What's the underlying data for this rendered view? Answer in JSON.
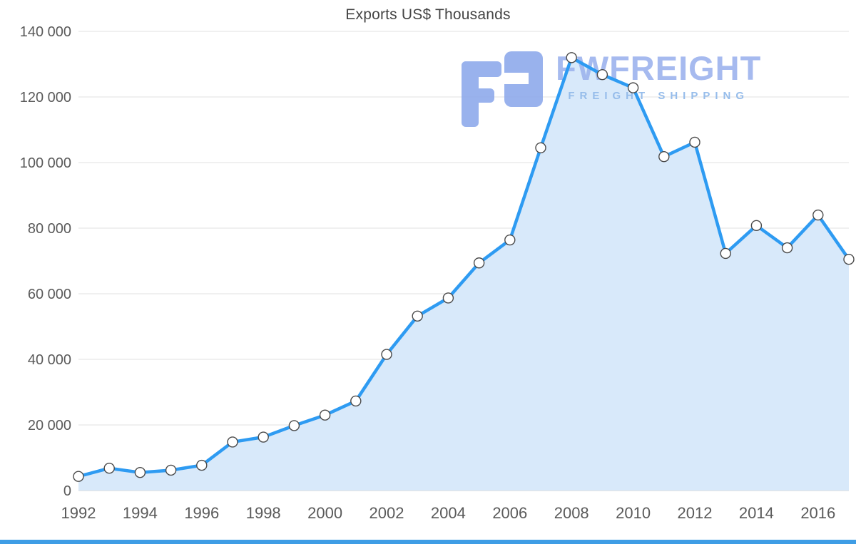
{
  "chart": {
    "title": "Exports US$ Thousands"
  },
  "watermark": {
    "brand": "FWFREIGHT",
    "tagline": "FREIGHT SHIPPING"
  },
  "chart_data": {
    "type": "area",
    "title": "Exports US$ Thousands",
    "x": [
      1992,
      1993,
      1994,
      1995,
      1996,
      1997,
      1998,
      1999,
      2000,
      2001,
      2002,
      2003,
      2004,
      2005,
      2006,
      2007,
      2008,
      2009,
      2010,
      2011,
      2012,
      2013,
      2014,
      2015,
      2016,
      2017
    ],
    "values": [
      4300,
      6800,
      5500,
      6200,
      7700,
      14800,
      16300,
      19800,
      23000,
      27300,
      41500,
      53200,
      58700,
      69400,
      76400,
      104500,
      132000,
      126800,
      122800,
      101800,
      106200,
      72300,
      80800,
      74000,
      84000,
      70500
    ],
    "series_name": "Exports US$ Thousands",
    "ylim": [
      0,
      140000
    ],
    "ytick_step": 20000,
    "yticks": [
      0,
      20000,
      40000,
      60000,
      80000,
      100000,
      120000,
      140000
    ],
    "xticks": [
      1992,
      1994,
      1996,
      1998,
      2000,
      2002,
      2004,
      2006,
      2008,
      2010,
      2012,
      2014,
      2016
    ],
    "grid": "horizontal",
    "legend": "none",
    "colors": {
      "line": "#2E9BF2",
      "fill": "#D8E9FA",
      "marker_fill": "#FFFFFF",
      "marker_stroke": "#4A4A4A",
      "grid": "#E2E2E2",
      "baseline": "#C6C6C6",
      "axis_text": "#5A5A5A",
      "title_text": "#454545",
      "watermark_text": "#9FB5EE",
      "watermark_tagline": "#92BAEA",
      "watermark_logo": "#8CA8EB",
      "bottom_bar": "#3E9DE5"
    }
  }
}
